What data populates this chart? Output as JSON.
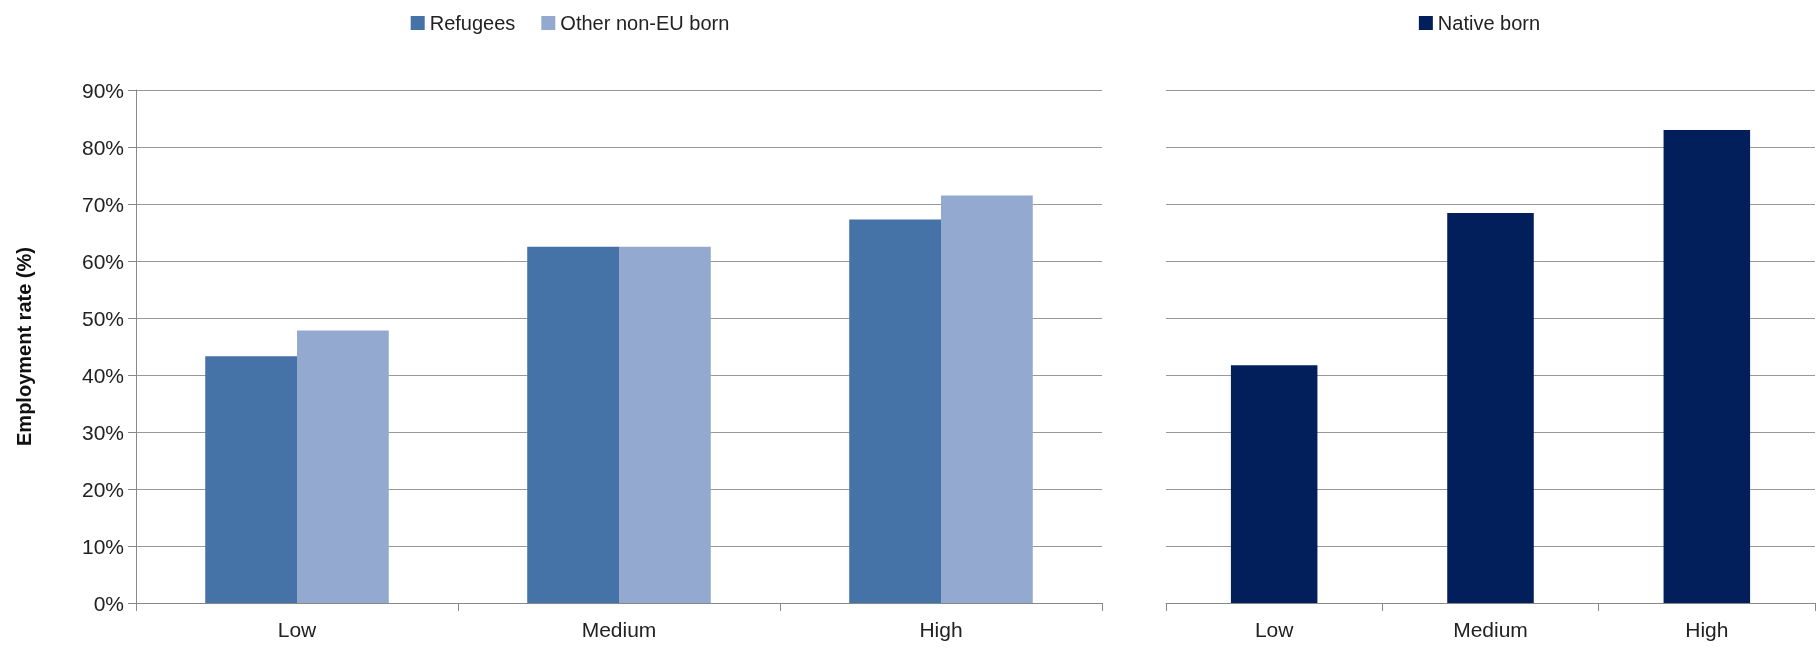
{
  "chart_data": [
    {
      "type": "bar",
      "categories": [
        "Low",
        "Medium",
        "High"
      ],
      "ylabel": "Employment rate (%)",
      "ylim": [
        0,
        90
      ],
      "yticks": [
        {
          "value": 0,
          "label": "0%"
        },
        {
          "value": 10,
          "label": "10%"
        },
        {
          "value": 20,
          "label": "20%"
        },
        {
          "value": 30,
          "label": "30%"
        },
        {
          "value": 40,
          "label": "40%"
        },
        {
          "value": 50,
          "label": "50%"
        },
        {
          "value": 60,
          "label": "60%"
        },
        {
          "value": 70,
          "label": "70%"
        },
        {
          "value": 80,
          "label": "80%"
        },
        {
          "value": 90,
          "label": "90%"
        }
      ],
      "series": [
        {
          "name": "Refugees",
          "color": "#4572a7",
          "values": [
            43.3,
            62.5,
            67.3
          ]
        },
        {
          "name": "Other non-EU born",
          "color": "#94a9d0",
          "values": [
            47.8,
            62.5,
            71.5
          ]
        }
      ],
      "grid": "y",
      "legend": "top"
    },
    {
      "type": "bar",
      "categories": [
        "Low",
        "Medium",
        "High"
      ],
      "ylim": [
        0,
        90
      ],
      "yticks": [
        {
          "value": 0,
          "label": null
        },
        {
          "value": 10,
          "label": null
        },
        {
          "value": 20,
          "label": null
        },
        {
          "value": 30,
          "label": null
        },
        {
          "value": 40,
          "label": null
        },
        {
          "value": 50,
          "label": null
        },
        {
          "value": 60,
          "label": null
        },
        {
          "value": 70,
          "label": null
        },
        {
          "value": 80,
          "label": null
        },
        {
          "value": 90,
          "label": null
        }
      ],
      "series": [
        {
          "name": "Native born",
          "color": "#021f5b",
          "values": [
            41.7,
            68.4,
            83
          ]
        }
      ],
      "grid": "y",
      "legend": "top",
      "tick_labels": "x"
    }
  ]
}
